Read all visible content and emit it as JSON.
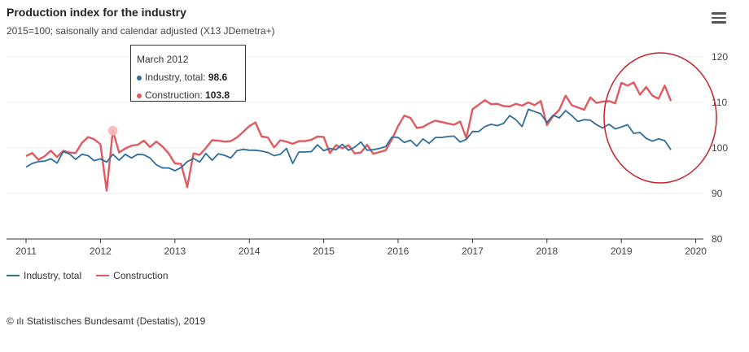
{
  "header": {
    "title": "Production index for the industry",
    "subtitle": "2015=100; saisonally and calendar adjusted (X13 JDemetra+)"
  },
  "menu": {
    "icon": "hamburger-menu-icon"
  },
  "tooltip": {
    "period": "March 2012",
    "rows": [
      {
        "label": "Industry, total:",
        "value": "98.6"
      },
      {
        "label": "Construction:",
        "value": "103.8"
      }
    ]
  },
  "legend": {
    "items": [
      {
        "label": "Industry, total"
      },
      {
        "label": "Construction"
      }
    ]
  },
  "source": {
    "text": "© ılı Statistisches Bundesamt (Destatis), 2019"
  },
  "colors": {
    "industry": "#2f6e9a",
    "construction": "#e05a5f",
    "annotation_circle": "#c8202a"
  },
  "chart_data": {
    "type": "line",
    "title": "Production index for the industry",
    "subtitle": "2015=100; saisonally and calendar adjusted (X13 JDemetra+)",
    "x_ticks": [
      "2011",
      "2012",
      "2013",
      "2014",
      "2015",
      "2016",
      "2017",
      "2018",
      "2019",
      "2020"
    ],
    "x_start": "2011-01",
    "y_ticks": [
      80,
      90,
      100,
      110,
      120
    ],
    "ylim": [
      80,
      120
    ],
    "y_axis_position": "right",
    "grid": true,
    "legend_position": "bottom-left",
    "annotation": "red ellipse around 2019 values",
    "series": [
      {
        "name": "Industry, total",
        "color": "#2f6e9a",
        "values": [
          95.8,
          96.6,
          97.0,
          97.1,
          97.6,
          96.7,
          99.2,
          98.7,
          97.5,
          98.6,
          98.3,
          97.2,
          97.6,
          96.9,
          98.6,
          97.3,
          98.6,
          97.8,
          98.6,
          98.5,
          97.8,
          96.3,
          95.6,
          95.6,
          95.0,
          95.7,
          97.0,
          97.7,
          96.9,
          98.8,
          97.3,
          98.7,
          98.4,
          97.8,
          99.4,
          99.7,
          99.5,
          99.5,
          99.3,
          99.0,
          98.3,
          98.6,
          99.9,
          96.6,
          99.1,
          99.1,
          99.2,
          100.7,
          99.4,
          99.9,
          99.6,
          100.8,
          99.5,
          100.2,
          101.3,
          99.5,
          99.6,
          99.9,
          100.3,
          102.4,
          102.3,
          101.2,
          101.7,
          100.4,
          102.0,
          101.0,
          102.3,
          102.3,
          102.5,
          102.6,
          101.3,
          101.9,
          103.6,
          103.6,
          104.7,
          105.2,
          104.9,
          105.4,
          107.1,
          106.2,
          104.7,
          108.5,
          108.0,
          107.5,
          105.6,
          107.2,
          106.6,
          108.2,
          107.1,
          105.8,
          106.2,
          106.1,
          105.1,
          104.4,
          105.2,
          104.2,
          104.6,
          105.1,
          103.2,
          103.4,
          102.1,
          101.5,
          102.0,
          101.6,
          99.6
        ]
      },
      {
        "name": "Construction",
        "color": "#e05a5f",
        "values": [
          98.2,
          98.9,
          97.4,
          98.2,
          99.4,
          98.0,
          99.4,
          99.0,
          98.9,
          101.1,
          102.4,
          101.9,
          100.8,
          90.6,
          103.8,
          99.0,
          99.9,
          100.5,
          100.7,
          101.6,
          100.2,
          101.4,
          100.3,
          98.8,
          96.6,
          96.5,
          91.4,
          98.8,
          98.5,
          100.0,
          101.7,
          101.6,
          101.4,
          101.5,
          102.3,
          103.5,
          104.8,
          105.6,
          102.5,
          102.3,
          100.1,
          101.7,
          101.4,
          100.9,
          101.5,
          101.5,
          101.8,
          102.5,
          102.4,
          98.9,
          100.6,
          99.9,
          100.6,
          98.8,
          99.0,
          100.7,
          98.7,
          99.1,
          99.5,
          101.9,
          104.8,
          107.1,
          106.6,
          104.4,
          104.6,
          105.4,
          106.0,
          105.7,
          105.4,
          105.1,
          105.8,
          102.2,
          108.5,
          109.5,
          110.5,
          109.6,
          109.7,
          109.2,
          109.1,
          109.7,
          109.3,
          110.0,
          109.4,
          110.3,
          105.0,
          107.0,
          108.4,
          111.5,
          109.4,
          108.9,
          108.4,
          111.1,
          109.9,
          110.2,
          110.3,
          109.8,
          114.3,
          113.7,
          114.4,
          111.7,
          113.4,
          111.5,
          110.8,
          113.7,
          110.3
        ]
      }
    ]
  }
}
